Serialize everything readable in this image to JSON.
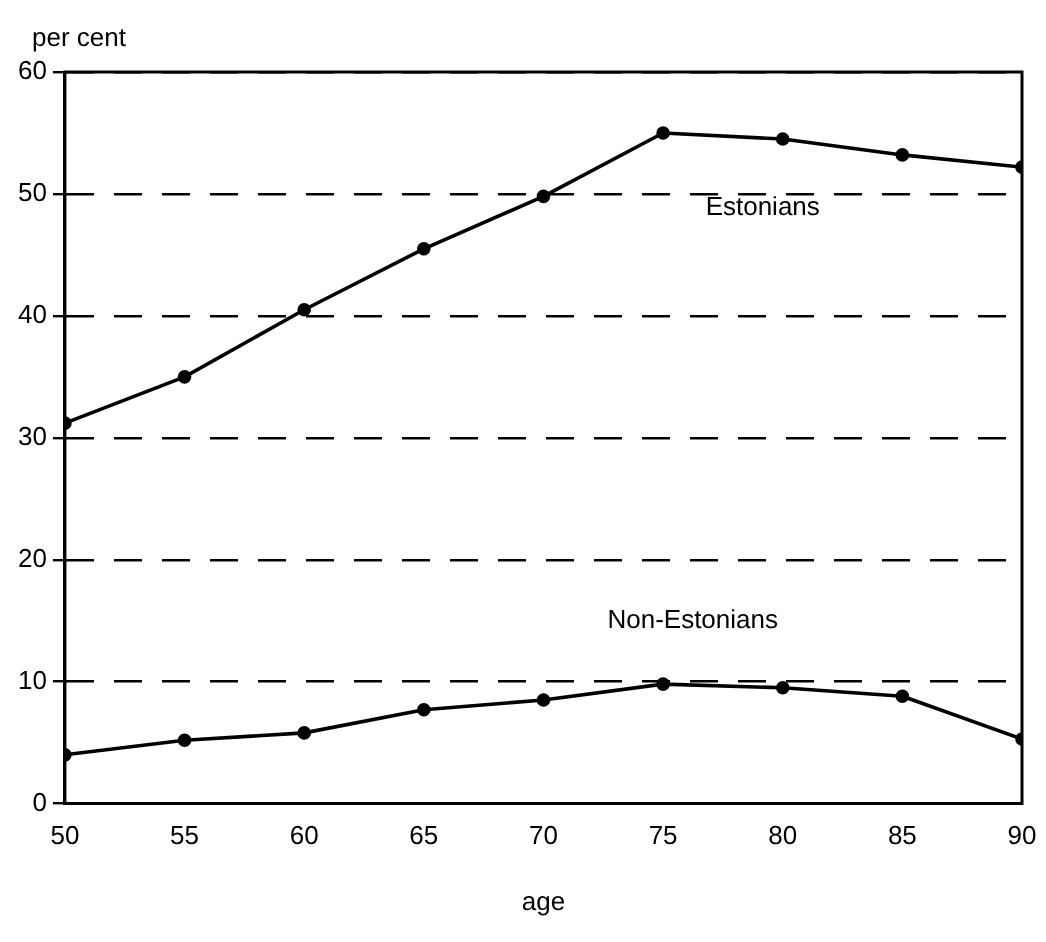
{
  "chart_data": {
    "type": "line",
    "xlabel": "age",
    "ylabel": "per cent",
    "x": [
      50,
      55,
      60,
      65,
      70,
      75,
      80,
      85,
      90
    ],
    "series": [
      {
        "name": "Estonians",
        "color": "#000000",
        "values": [
          31.2,
          35,
          40.5,
          45.5,
          49.8,
          55,
          54.5,
          53.2,
          52.2
        ]
      },
      {
        "name": "Non-Estonians",
        "color": "#000000",
        "values": [
          4,
          5.2,
          5.8,
          7.7,
          8.5,
          9.8,
          9.5,
          8.8,
          5.3
        ]
      }
    ],
    "xlim": [
      50,
      90
    ],
    "xticks": [
      50,
      55,
      60,
      65,
      70,
      75,
      80,
      85,
      90
    ],
    "ylim": [
      0,
      60
    ],
    "yticks": [
      0,
      10,
      20,
      30,
      40,
      50,
      60
    ],
    "grid": "y",
    "legend": false,
    "marker": "circle",
    "line_style": "solid"
  }
}
